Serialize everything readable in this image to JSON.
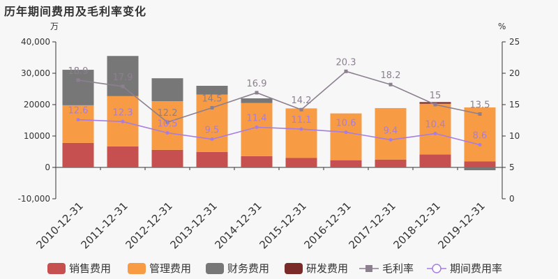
{
  "title": "历年期间费用及毛利率变化",
  "chart_data": {
    "type": "bar",
    "title": "历年期间费用及毛利率变化",
    "ylabel_left": "万",
    "ylabel_right": "%",
    "ylim_left": [
      -10000,
      40000
    ],
    "ylim_right": [
      0,
      25
    ],
    "yticks_left": [
      -10000,
      0,
      10000,
      20000,
      30000,
      40000
    ],
    "yticks_left_labels": [
      "-10,000",
      "0",
      "10000",
      "20000",
      "30,000",
      "40,000"
    ],
    "yticks_right": [
      0,
      5,
      10,
      15,
      20,
      25
    ],
    "legend_position": "bottom",
    "categories": [
      "2010-12-31",
      "2011-12-31",
      "2012-12-31",
      "2013-12-31",
      "2014-12-31",
      "2015-12-31",
      "2016-12-31",
      "2017-12-31",
      "2018-12-31",
      "2019-12-31"
    ],
    "series": [
      {
        "name": "销售费用",
        "type": "bar",
        "stack": "cost",
        "axis": "left",
        "color": "#c64f4f",
        "values": [
          7800,
          6700,
          5600,
          4900,
          3600,
          3000,
          2300,
          2500,
          4100,
          1900
        ]
      },
      {
        "name": "管理费用",
        "type": "bar",
        "stack": "cost",
        "axis": "left",
        "color": "#f79b44",
        "values": [
          12000,
          16000,
          15500,
          18300,
          16900,
          15800,
          14900,
          16400,
          16200,
          17200
        ]
      },
      {
        "name": "财务费用",
        "type": "bar",
        "stack": "cost",
        "axis": "left",
        "color": "#777777",
        "values": [
          11300,
          12800,
          7300,
          2800,
          1500,
          0,
          0,
          0,
          0,
          -900
        ]
      },
      {
        "name": "研发费用",
        "type": "bar",
        "stack": "cost",
        "axis": "left",
        "color": "#7b2a2a",
        "values": [
          0,
          0,
          0,
          0,
          0,
          0,
          0,
          0,
          500,
          0
        ]
      },
      {
        "name": "毛利率",
        "type": "line",
        "axis": "right",
        "color": "#8c7f8f",
        "marker": "square",
        "values": [
          18.9,
          17.9,
          12.2,
          14.5,
          16.9,
          14.2,
          20.3,
          18.2,
          15,
          13.5
        ],
        "labels": [
          "18.9",
          "17.9",
          "12.2",
          "14.5",
          "16.9",
          "14.2",
          "20.3",
          "18.2",
          "15",
          "13.5"
        ]
      },
      {
        "name": "期间费用率",
        "type": "line",
        "axis": "right",
        "color": "#a57de4",
        "marker": "circle",
        "values": [
          12.6,
          12.3,
          10.5,
          9.5,
          11.4,
          11.1,
          10.6,
          9.4,
          10.4,
          8.6
        ],
        "labels": [
          "12.6",
          "12.3",
          "10.5",
          "9.5",
          "11.4",
          "11.1",
          "10.6",
          "9.4",
          "10.4",
          "8.6"
        ]
      }
    ]
  }
}
